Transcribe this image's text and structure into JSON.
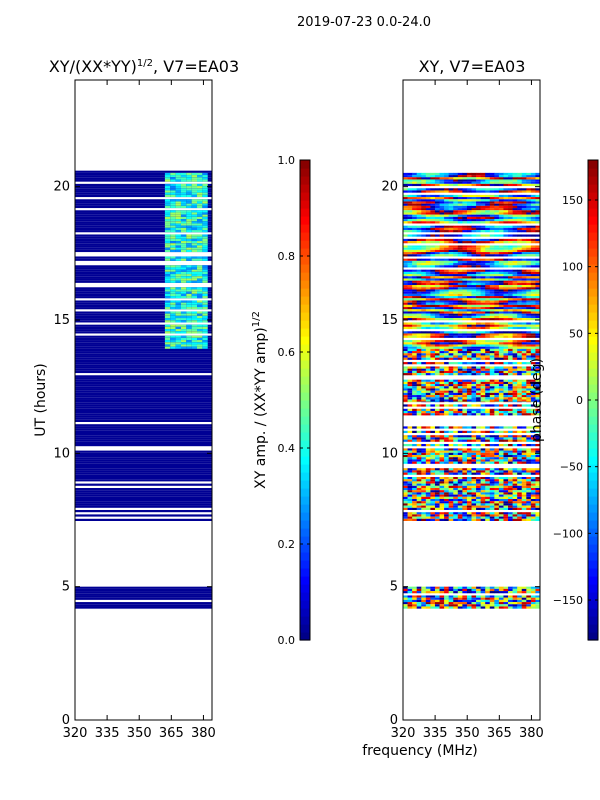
{
  "figure": {
    "suptitle": "2019-07-23 0.0-24.0",
    "shared_xlabel": "frequency (MHz)"
  },
  "chart_data": [
    {
      "type": "heatmap",
      "title": "XY/(XX*YY)",
      "title_superscript": "1/2",
      "title_suffix": ", V7=EA03",
      "xlabel": "",
      "ylabel": "UT (hours)",
      "xlim": [
        320,
        384
      ],
      "ylim": [
        0,
        24
      ],
      "x_ticks": [
        320,
        335,
        350,
        365,
        380
      ],
      "y_ticks": [
        0,
        5,
        10,
        15,
        20
      ],
      "colorbar": {
        "label": "XY amp. / (XX*YY amp)",
        "label_superscript": "1/2",
        "range": [
          0,
          1
        ],
        "ticks": [
          "0.0",
          "0.2",
          "0.4",
          "0.6",
          "0.8",
          "1.0"
        ],
        "tick_values": [
          0,
          0.2,
          0.4,
          0.6,
          0.8,
          1.0
        ]
      },
      "data_time_ranges_hours": [
        [
          4.2,
          5.0
        ],
        [
          7.5,
          12.0
        ],
        [
          12.0,
          20.6
        ]
      ],
      "background_value": 0.02,
      "brighter_band_mhz": [
        362,
        382
      ],
      "brighter_band_hours": [
        14.0,
        20.6
      ]
    },
    {
      "type": "heatmap",
      "title": "XY, V7=EA03",
      "xlabel": "",
      "ylabel": "",
      "xlim": [
        320,
        384
      ],
      "ylim": [
        0,
        24
      ],
      "x_ticks": [
        320,
        335,
        350,
        365,
        380
      ],
      "y_ticks": [
        0,
        5,
        10,
        15,
        20
      ],
      "colorbar": {
        "label": "phase (deg)",
        "range": [
          -180,
          180
        ],
        "ticks": [
          "−150",
          "−100",
          "−50",
          "0",
          "50",
          "100",
          "150"
        ],
        "tick_values": [
          -150,
          -100,
          -50,
          0,
          50,
          100,
          150
        ]
      },
      "data_time_ranges_hours": [
        [
          4.2,
          5.0
        ],
        [
          7.5,
          12.0
        ],
        [
          12.0,
          20.6
        ]
      ],
      "noisy_phase_hours": [
        4.2,
        14.0
      ],
      "smooth_phase_hours": [
        14.0,
        20.6
      ]
    }
  ]
}
